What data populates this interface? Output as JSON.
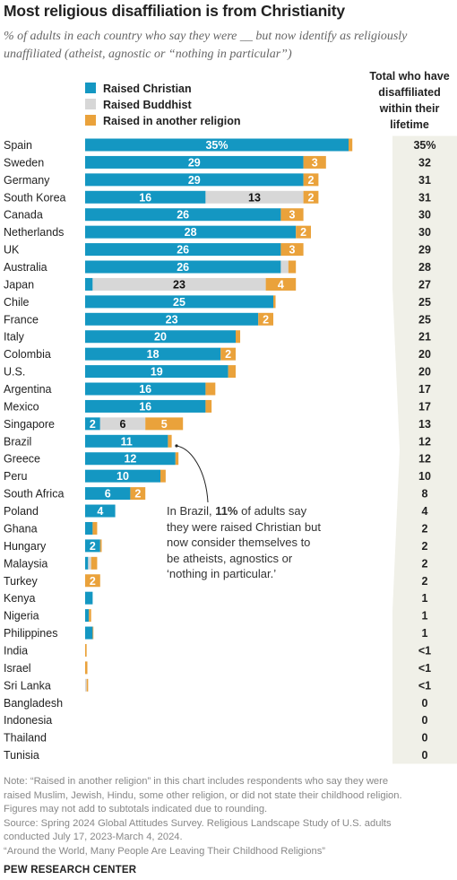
{
  "title": "Most religious disaffiliation is from Christianity",
  "subtitle": "% of adults in each country who say they were __ but now identify as religiously unaffiliated (atheist, agnostic or “nothing in particular”)",
  "total_header": [
    "Total who have",
    "disaffiliated",
    "within their",
    "lifetime"
  ],
  "annotation": {
    "prefix": "In Brazil, ",
    "highlight": "11%",
    "suffix": " of adults say they were raised Christian but now consider themselves to be atheists, agnostics or ‘nothing in particular.’"
  },
  "note_lines": [
    "Note: “Raised in another religion” in this chart includes respondents who say they were",
    "raised Muslim, Jewish, Hindu, some other religion, or did not state their childhood religion.",
    "Figures may not add to subtotals indicated due to rounding.",
    "Source: Spring 2024 Global Attitudes Survey. Religious Landscape Study of U.S. adults",
    "conducted July 17, 2023-March 4, 2024.",
    "“Around the World, Many People Are Leaving Their Childhood Religions”"
  ],
  "source_org": "PEW RESEARCH CENTER",
  "colors": {
    "christian": "#1497c2",
    "buddhist": "#d7d7d7",
    "other": "#eaa23b",
    "total_band": "#f0f0e8"
  },
  "chart_data": {
    "type": "bar",
    "orientation": "horizontal",
    "stacked": true,
    "title": "Most religious disaffiliation is from Christianity",
    "legend_position": "top-left",
    "categories": [
      "Spain",
      "Sweden",
      "Germany",
      "South Korea",
      "Canada",
      "Netherlands",
      "UK",
      "Australia",
      "Japan",
      "Chile",
      "France",
      "Italy",
      "Colombia",
      "U.S.",
      "Argentina",
      "Mexico",
      "Singapore",
      "Brazil",
      "Greece",
      "Peru",
      "South Africa",
      "Poland",
      "Ghana",
      "Hungary",
      "Malaysia",
      "Turkey",
      "Kenya",
      "Nigeria",
      "Philippines",
      "India",
      "Israel",
      "Sri Lanka",
      "Bangladesh",
      "Indonesia",
      "Thailand",
      "Tunisia"
    ],
    "series": [
      {
        "name": "Raised Christian",
        "values": [
          35,
          29,
          29,
          16,
          26,
          28,
          26,
          26,
          1,
          25,
          23,
          20,
          18,
          19,
          16,
          16,
          2,
          11,
          12,
          10,
          6,
          4,
          1,
          2,
          0.4,
          0,
          1,
          0.5,
          1,
          0,
          0,
          0,
          0,
          0,
          0,
          0
        ]
      },
      {
        "name": "Raised Buddhist",
        "values": [
          0,
          0,
          0,
          13,
          0,
          0,
          0,
          1,
          23,
          0,
          0,
          0,
          0,
          0,
          0,
          0,
          6,
          0,
          0,
          0,
          0,
          0,
          0,
          0,
          0.4,
          0,
          0,
          0,
          0,
          0,
          0,
          0.2,
          0,
          0,
          0,
          0
        ]
      },
      {
        "name": "Raised in another religion",
        "values": [
          0.5,
          3,
          2,
          2,
          3,
          2,
          3,
          1,
          4,
          0.3,
          2,
          0.6,
          2,
          1,
          1.3,
          0.8,
          5,
          0.5,
          0.4,
          0.7,
          2,
          0,
          0.6,
          0.2,
          0.8,
          2,
          0,
          0.3,
          0.1,
          0.2,
          0.3,
          0.2,
          0,
          0,
          0,
          0
        ]
      }
    ],
    "bar_labels": [
      [
        "35%",
        "",
        ""
      ],
      [
        "29",
        "",
        "3"
      ],
      [
        "29",
        "",
        "2"
      ],
      [
        "16",
        "13",
        "2"
      ],
      [
        "26",
        "",
        "3"
      ],
      [
        "28",
        "",
        "2"
      ],
      [
        "26",
        "",
        "3"
      ],
      [
        "26",
        "",
        ""
      ],
      [
        "",
        "23",
        "4"
      ],
      [
        "25",
        "",
        ""
      ],
      [
        "23",
        "",
        "2"
      ],
      [
        "20",
        "",
        ""
      ],
      [
        "18",
        "",
        "2"
      ],
      [
        "19",
        "",
        ""
      ],
      [
        "16",
        "",
        ""
      ],
      [
        "16",
        "",
        ""
      ],
      [
        "2",
        "6",
        "5"
      ],
      [
        "11",
        "",
        ""
      ],
      [
        "12",
        "",
        ""
      ],
      [
        "10",
        "",
        ""
      ],
      [
        "6",
        "",
        "2"
      ],
      [
        "4",
        "",
        ""
      ],
      [
        "",
        "",
        ""
      ],
      [
        "2",
        "",
        ""
      ],
      [
        "",
        "",
        ""
      ],
      [
        "",
        "",
        "2"
      ],
      [
        "",
        "",
        ""
      ],
      [
        "",
        "",
        ""
      ],
      [
        "",
        "",
        ""
      ],
      [
        "",
        "",
        ""
      ],
      [
        "",
        "",
        ""
      ],
      [
        "",
        "",
        ""
      ],
      [
        "",
        "",
        ""
      ],
      [
        "",
        "",
        ""
      ],
      [
        "",
        "",
        ""
      ],
      [
        "",
        "",
        ""
      ]
    ],
    "totals": [
      "35%",
      "32",
      "31",
      "31",
      "30",
      "30",
      "29",
      "28",
      "27",
      "25",
      "25",
      "21",
      "20",
      "20",
      "17",
      "17",
      "13",
      "12",
      "12",
      "10",
      "8",
      "4",
      "2",
      "2",
      "2",
      "2",
      "1",
      "1",
      "1",
      "<1",
      "<1",
      "<1",
      "0",
      "0",
      "0",
      "0"
    ]
  }
}
